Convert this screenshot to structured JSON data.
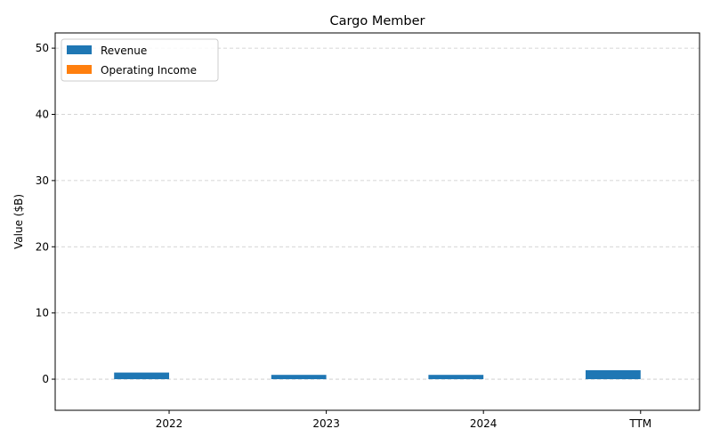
{
  "chart_data": {
    "type": "bar",
    "title": "Cargo Member",
    "xlabel": "",
    "ylabel": "Value ($B)",
    "categories": [
      "2022",
      "2023",
      "2024",
      "TTM"
    ],
    "series": [
      {
        "name": "Revenue",
        "color": "#1f77b4",
        "values": [
          1.0,
          0.65,
          0.65,
          1.35
        ]
      },
      {
        "name": "Operating Income",
        "color": "#ff7f0e",
        "values": [
          0.0,
          0.0,
          0.0,
          0.0
        ]
      }
    ],
    "ylim": [
      -4.7,
      52.3
    ],
    "yticks": [
      0,
      10,
      20,
      30,
      40,
      50
    ],
    "grid": "horizontal-dashed",
    "legend": "top-left"
  }
}
